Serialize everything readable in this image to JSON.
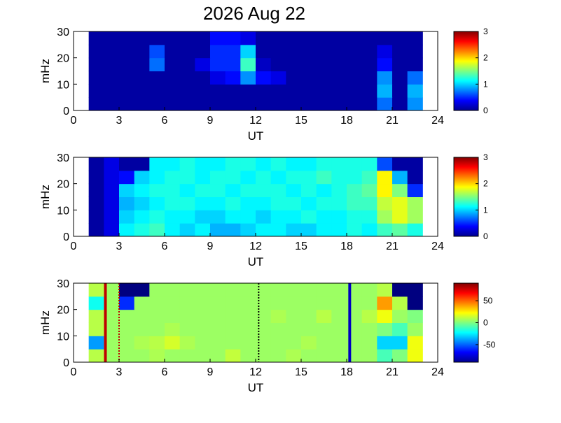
{
  "chart_data": [
    {
      "type": "heatmap",
      "title": "2026 Aug 22",
      "xlabel": "UT",
      "ylabel": "mHz",
      "xlim": [
        0,
        24
      ],
      "xticks": [
        0,
        3,
        6,
        9,
        12,
        15,
        18,
        21,
        24
      ],
      "ylim": [
        0,
        30
      ],
      "yticks": [
        0,
        10,
        20,
        30
      ],
      "xbins": [
        1,
        2,
        3,
        4,
        5,
        6,
        7,
        8,
        9,
        10,
        11,
        12,
        13,
        14,
        15,
        16,
        17,
        18,
        19,
        20,
        21,
        22,
        23
      ],
      "ybins": [
        0,
        5,
        10,
        15,
        20,
        25,
        30
      ],
      "colormap": "jet",
      "clim": [
        0,
        3
      ],
      "cticks": [
        0,
        1,
        2,
        3
      ],
      "z": [
        [
          0.1,
          0.1,
          0.1,
          0.1,
          0.1,
          0.1,
          0.1,
          0.1,
          0.1,
          0.1,
          0.1,
          0.1,
          0.1,
          0.1,
          0.1,
          0.1,
          0.1,
          0.1,
          0.1,
          0.7,
          0.1,
          0.8
        ],
        [
          0.1,
          0.1,
          0.1,
          0.1,
          0.1,
          0.1,
          0.1,
          0.1,
          0.1,
          0.1,
          0.1,
          0.1,
          0.1,
          0.1,
          0.1,
          0.1,
          0.1,
          0.1,
          0.1,
          0.9,
          0.1,
          0.9
        ],
        [
          0.1,
          0.1,
          0.1,
          0.1,
          0.1,
          0.1,
          0.1,
          0.1,
          0.3,
          0.4,
          0.8,
          0.4,
          0.3,
          0.1,
          0.1,
          0.1,
          0.1,
          0.1,
          0.1,
          0.8,
          0.1,
          0.7
        ],
        [
          0.1,
          0.1,
          0.1,
          0.1,
          0.7,
          0.1,
          0.1,
          0.3,
          0.5,
          0.5,
          1.3,
          0.2,
          0.1,
          0.1,
          0.1,
          0.1,
          0.1,
          0.1,
          0.1,
          0.4,
          0.1,
          0.1
        ],
        [
          0.1,
          0.1,
          0.1,
          0.1,
          0.6,
          0.1,
          0.1,
          0.1,
          0.5,
          0.5,
          1.0,
          0.1,
          0.1,
          0.1,
          0.1,
          0.1,
          0.1,
          0.1,
          0.1,
          0.3,
          0.1,
          0.1
        ],
        [
          0.1,
          0.1,
          0.1,
          0.1,
          0.1,
          0.1,
          0.1,
          0.1,
          0.4,
          0.4,
          0.3,
          0.1,
          0.1,
          0.1,
          0.1,
          0.1,
          0.1,
          0.1,
          0.1,
          0.1,
          0.1,
          0.1
        ]
      ]
    },
    {
      "type": "heatmap",
      "xlabel": "UT",
      "ylabel": "mHz",
      "xlim": [
        0,
        24
      ],
      "xticks": [
        0,
        3,
        6,
        9,
        12,
        15,
        18,
        21,
        24
      ],
      "ylim": [
        0,
        30
      ],
      "yticks": [
        0,
        10,
        20,
        30
      ],
      "xbins": [
        1,
        2,
        3,
        4,
        5,
        6,
        7,
        8,
        9,
        10,
        11,
        12,
        13,
        14,
        15,
        16,
        17,
        18,
        19,
        20,
        21,
        22,
        23
      ],
      "ybins": [
        0,
        5,
        10,
        15,
        20,
        25,
        30
      ],
      "colormap": "jet",
      "clim": [
        0,
        3
      ],
      "cticks": [
        0,
        1,
        2,
        3
      ],
      "z": [
        [
          0.1,
          0.3,
          1.1,
          1.2,
          1.3,
          1.1,
          1.0,
          1.1,
          0.9,
          0.9,
          1.0,
          1.1,
          1.1,
          1.0,
          1.0,
          1.1,
          1.1,
          1.2,
          1.1,
          1.3,
          1.4,
          1.2
        ],
        [
          0.1,
          0.3,
          1.0,
          1.1,
          1.2,
          1.1,
          1.1,
          1.0,
          1.0,
          1.1,
          1.1,
          1.0,
          1.1,
          1.1,
          1.2,
          1.1,
          1.1,
          1.2,
          1.2,
          1.6,
          1.8,
          1.6
        ],
        [
          0.1,
          0.3,
          0.9,
          1.0,
          1.1,
          1.2,
          1.2,
          1.1,
          1.1,
          1.2,
          1.1,
          1.1,
          1.2,
          1.2,
          1.1,
          1.2,
          1.2,
          1.3,
          1.3,
          1.7,
          1.8,
          1.6
        ],
        [
          0.1,
          0.3,
          1.0,
          1.1,
          1.2,
          1.2,
          1.1,
          1.2,
          1.2,
          1.1,
          1.2,
          1.2,
          1.2,
          1.1,
          1.2,
          1.1,
          1.2,
          1.3,
          1.4,
          1.9,
          1.5,
          0.5
        ],
        [
          0.1,
          0.3,
          0.4,
          1.0,
          1.1,
          1.2,
          1.2,
          1.1,
          1.2,
          1.2,
          1.1,
          1.2,
          1.1,
          1.2,
          1.2,
          1.3,
          1.2,
          1.2,
          1.3,
          1.9,
          0.9,
          0.1
        ],
        [
          0.1,
          0.3,
          0.1,
          0.1,
          1.1,
          1.1,
          1.2,
          1.1,
          1.1,
          1.2,
          1.2,
          1.1,
          1.2,
          1.1,
          1.1,
          1.2,
          1.2,
          1.2,
          1.2,
          0.6,
          0.1,
          0.1
        ]
      ]
    },
    {
      "type": "heatmap",
      "xlabel": "UT",
      "ylabel": "mHz",
      "xlim": [
        0,
        24
      ],
      "xticks": [
        0,
        3,
        6,
        9,
        12,
        15,
        18,
        21,
        24
      ],
      "ylim": [
        0,
        30
      ],
      "yticks": [
        0,
        10,
        20,
        30
      ],
      "xbins": [
        1,
        2,
        3,
        4,
        5,
        6,
        7,
        8,
        9,
        10,
        11,
        12,
        13,
        14,
        15,
        16,
        17,
        18,
        19,
        20,
        21,
        22,
        23
      ],
      "ybins": [
        0,
        5,
        10,
        15,
        20,
        25,
        30
      ],
      "colormap": "jet",
      "clim": [
        -90,
        90
      ],
      "cticks": [
        50,
        0,
        -50
      ],
      "z": [
        [
          10,
          5,
          5,
          5,
          8,
          5,
          5,
          5,
          5,
          12,
          5,
          5,
          5,
          8,
          5,
          5,
          5,
          5,
          5,
          -10,
          0,
          20
        ],
        [
          -40,
          5,
          5,
          8,
          10,
          15,
          8,
          5,
          5,
          5,
          5,
          5,
          5,
          5,
          8,
          5,
          5,
          5,
          5,
          -30,
          -30,
          20
        ],
        [
          10,
          5,
          5,
          5,
          5,
          8,
          5,
          5,
          5,
          5,
          5,
          5,
          5,
          5,
          5,
          5,
          5,
          5,
          5,
          0,
          -10,
          5
        ],
        [
          10,
          5,
          5,
          5,
          5,
          5,
          5,
          5,
          5,
          5,
          5,
          5,
          8,
          5,
          5,
          10,
          5,
          5,
          10,
          20,
          5,
          0
        ],
        [
          -20,
          5,
          -60,
          5,
          5,
          5,
          5,
          5,
          5,
          5,
          5,
          5,
          5,
          5,
          5,
          5,
          5,
          5,
          5,
          40,
          10,
          -90
        ],
        [
          10,
          5,
          -90,
          -90,
          5,
          5,
          5,
          5,
          5,
          5,
          5,
          5,
          5,
          5,
          5,
          5,
          5,
          5,
          5,
          10,
          -90,
          -90
        ]
      ],
      "lines": [
        {
          "x": 2.1,
          "color": "#c00000",
          "style": "solid"
        },
        {
          "x": 3.0,
          "color": "#c00000",
          "style": "dotted"
        },
        {
          "x": 12.2,
          "color": "#000000",
          "style": "dotted"
        },
        {
          "x": 18.2,
          "color": "#0000c0",
          "style": "solid"
        }
      ]
    }
  ]
}
